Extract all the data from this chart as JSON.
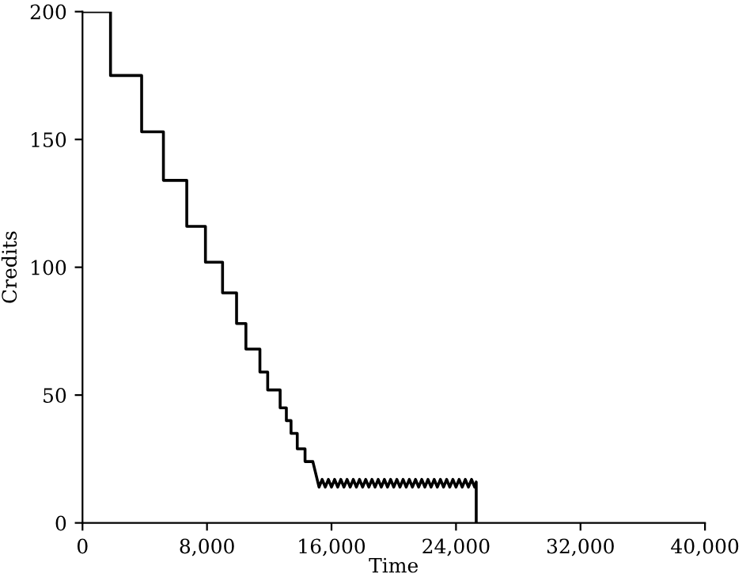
{
  "chart_data": {
    "type": "line",
    "xlabel": "Time",
    "ylabel": "Credits",
    "xlim": [
      0,
      40000
    ],
    "xticks": [
      0,
      {
        "value": 8000,
        "label": "8,000"
      },
      {
        "value": 16000,
        "label": "16,000"
      },
      {
        "value": 24000,
        "label": "24,000"
      },
      {
        "value": 32000,
        "label": "32,000"
      },
      {
        "value": 40000,
        "label": "40,000"
      }
    ],
    "ylim": [
      0,
      200
    ],
    "yticks": [
      0,
      50,
      100,
      150,
      200
    ],
    "grid": false,
    "legend": false,
    "marker": "none",
    "line_style": "solid",
    "series": [
      {
        "color": "#000000",
        "x": [
          0,
          1800,
          1800,
          3800,
          3800,
          5200,
          5200,
          6700,
          6700,
          7900,
          7900,
          9000,
          9000,
          9900,
          9900,
          10500,
          10500,
          11400,
          11400,
          11900,
          11900,
          12700,
          12700,
          13100,
          13100,
          13400,
          13400,
          13800,
          13800,
          14300,
          14300,
          14800,
          15200,
          15400,
          15600,
          15800,
          16000,
          16200,
          16400,
          16600,
          16800,
          17000,
          17200,
          17400,
          17600,
          17800,
          18000,
          18200,
          18400,
          18600,
          18800,
          19000,
          19200,
          19400,
          19600,
          19800,
          20000,
          20200,
          20400,
          20600,
          20800,
          21000,
          21200,
          21400,
          21600,
          21800,
          22000,
          22200,
          22400,
          22600,
          22800,
          23000,
          23200,
          23400,
          23600,
          23800,
          24000,
          24200,
          24400,
          24600,
          24800,
          25000,
          25200,
          25300,
          25300
        ],
        "values": [
          200,
          200,
          175,
          175,
          153,
          153,
          134,
          134,
          116,
          116,
          102,
          102,
          90,
          90,
          78,
          78,
          68,
          68,
          59,
          59,
          52,
          52,
          45,
          45,
          40,
          40,
          35,
          35,
          29,
          29,
          24,
          24,
          14,
          17,
          14,
          17,
          14,
          17,
          14,
          17,
          14,
          17,
          14,
          17,
          14,
          17,
          14,
          17,
          14,
          17,
          14,
          17,
          14,
          17,
          14,
          17,
          14,
          17,
          14,
          17,
          14,
          17,
          14,
          17,
          14,
          17,
          14,
          17,
          14,
          17,
          14,
          17,
          14,
          17,
          14,
          17,
          14,
          17,
          14,
          17,
          14,
          17,
          14,
          16,
          0
        ]
      }
    ]
  }
}
